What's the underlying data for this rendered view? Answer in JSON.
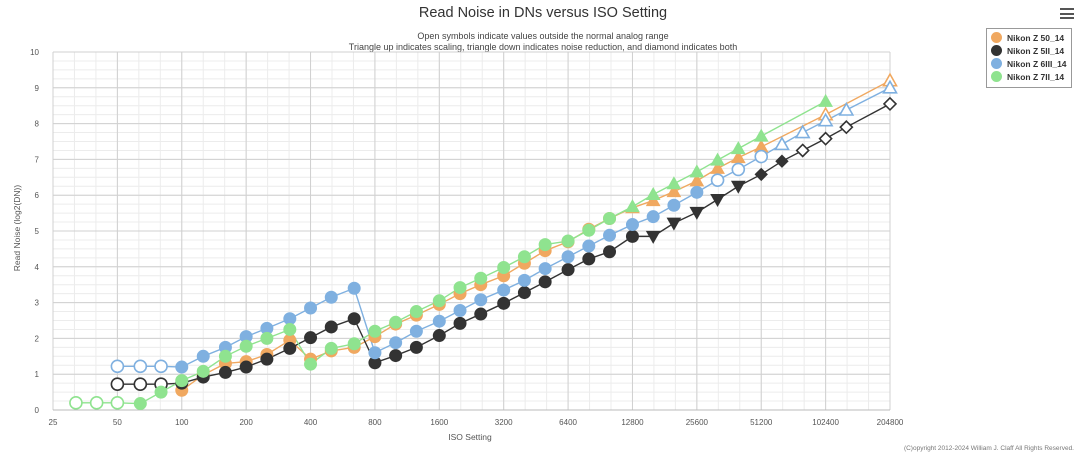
{
  "menu_icon": "hamburger-menu-icon",
  "chart_data": {
    "type": "line",
    "title": "Read Noise in DNs versus ISO Setting",
    "subtitle_lines": [
      "Open symbols indicate values outside the normal analog range",
      "Triangle up indicates scaling, triangle down indicates noise reduction, and diamond indicates both"
    ],
    "xlabel": "ISO Setting",
    "ylabel": "Read Noise (log2(DN))",
    "x_scale": "log2",
    "xlim": [
      25,
      204800
    ],
    "ylim": [
      0,
      10
    ],
    "x_ticks": [
      25,
      50,
      100,
      200,
      400,
      800,
      1600,
      3200,
      6400,
      12800,
      25600,
      51200,
      102400,
      204800
    ],
    "x_tick_labels": [
      "25",
      "50",
      "100",
      "200",
      "400",
      "800",
      "1600",
      "3200",
      "6400",
      "12800",
      "25600",
      "51200",
      "102400",
      "204800"
    ],
    "y_ticks": [
      0,
      1,
      2,
      3,
      4,
      5,
      6,
      7,
      8,
      9,
      10
    ],
    "y_tick_labels": [
      "0",
      "1",
      "2",
      "3",
      "4",
      "5",
      "6",
      "7",
      "8",
      "9",
      "10"
    ],
    "legend_position": "top-right",
    "copyright": "(C)opyright 2012-2024 William J. Claff All Rights Reserved.",
    "series": [
      {
        "name": "Nikon Z 50_14",
        "color": "#f0a860",
        "points": [
          {
            "x": 100,
            "y": 0.55
          },
          {
            "x": 126,
            "y": 0.98
          },
          {
            "x": 160,
            "y": 1.3
          },
          {
            "x": 200,
            "y": 1.35
          },
          {
            "x": 250,
            "y": 1.55
          },
          {
            "x": 320,
            "y": 1.95
          },
          {
            "x": 400,
            "y": 1.42
          },
          {
            "x": 500,
            "y": 1.65
          },
          {
            "x": 640,
            "y": 1.75
          },
          {
            "x": 800,
            "y": 2.05
          },
          {
            "x": 1000,
            "y": 2.4
          },
          {
            "x": 1250,
            "y": 2.65
          },
          {
            "x": 1600,
            "y": 2.95
          },
          {
            "x": 2000,
            "y": 3.25
          },
          {
            "x": 2500,
            "y": 3.5
          },
          {
            "x": 3200,
            "y": 3.75
          },
          {
            "x": 4000,
            "y": 4.1
          },
          {
            "x": 5000,
            "y": 4.45
          },
          {
            "x": 6400,
            "y": 4.7
          },
          {
            "x": 8000,
            "y": 5.05
          },
          {
            "x": 10000,
            "y": 5.35
          },
          {
            "x": 12800,
            "y": 5.65,
            "marker": "triangle-up"
          },
          {
            "x": 16000,
            "y": 5.85,
            "marker": "triangle-up"
          },
          {
            "x": 20000,
            "y": 6.1,
            "marker": "triangle-up"
          },
          {
            "x": 25600,
            "y": 6.4,
            "marker": "triangle-up"
          },
          {
            "x": 32000,
            "y": 6.75,
            "marker": "triangle-up"
          },
          {
            "x": 40000,
            "y": 7.05,
            "marker": "triangle-up"
          },
          {
            "x": 51200,
            "y": 7.35,
            "marker": "triangle-up"
          },
          {
            "x": 102400,
            "y": 8.25,
            "marker": "triangle-up",
            "open": true
          },
          {
            "x": 204800,
            "y": 9.2,
            "marker": "triangle-up",
            "open": true
          }
        ]
      },
      {
        "name": "Nikon Z 5II_14",
        "color": "#333333",
        "points": [
          {
            "x": 50,
            "y": 0.72,
            "open": true
          },
          {
            "x": 64,
            "y": 0.72,
            "open": true
          },
          {
            "x": 80,
            "y": 0.72,
            "open": true
          },
          {
            "x": 100,
            "y": 0.75
          },
          {
            "x": 126,
            "y": 0.92
          },
          {
            "x": 160,
            "y": 1.05
          },
          {
            "x": 200,
            "y": 1.2
          },
          {
            "x": 250,
            "y": 1.42
          },
          {
            "x": 320,
            "y": 1.72
          },
          {
            "x": 400,
            "y": 2.02
          },
          {
            "x": 500,
            "y": 2.32
          },
          {
            "x": 640,
            "y": 2.55
          },
          {
            "x": 800,
            "y": 1.32
          },
          {
            "x": 1000,
            "y": 1.52
          },
          {
            "x": 1250,
            "y": 1.75
          },
          {
            "x": 1600,
            "y": 2.08
          },
          {
            "x": 2000,
            "y": 2.42
          },
          {
            "x": 2500,
            "y": 2.68
          },
          {
            "x": 3200,
            "y": 2.98
          },
          {
            "x": 4000,
            "y": 3.28
          },
          {
            "x": 5000,
            "y": 3.58
          },
          {
            "x": 6400,
            "y": 3.92
          },
          {
            "x": 8000,
            "y": 4.22
          },
          {
            "x": 10000,
            "y": 4.42
          },
          {
            "x": 12800,
            "y": 4.85
          },
          {
            "x": 16000,
            "y": 4.85,
            "marker": "triangle-down"
          },
          {
            "x": 20000,
            "y": 5.22,
            "marker": "triangle-down"
          },
          {
            "x": 25600,
            "y": 5.52,
            "marker": "triangle-down"
          },
          {
            "x": 32000,
            "y": 5.88,
            "marker": "triangle-down"
          },
          {
            "x": 40000,
            "y": 6.25,
            "marker": "triangle-down"
          },
          {
            "x": 51200,
            "y": 6.58,
            "marker": "diamond"
          },
          {
            "x": 64000,
            "y": 6.95,
            "marker": "diamond"
          },
          {
            "x": 80000,
            "y": 7.25,
            "marker": "diamond",
            "open": true
          },
          {
            "x": 102400,
            "y": 7.58,
            "marker": "diamond",
            "open": true
          },
          {
            "x": 128000,
            "y": 7.9,
            "marker": "diamond",
            "open": true
          },
          {
            "x": 204800,
            "y": 8.55,
            "marker": "diamond",
            "open": true
          }
        ]
      },
      {
        "name": "Nikon Z 6III_14",
        "color": "#7fb0e0",
        "points": [
          {
            "x": 50,
            "y": 1.22,
            "open": true
          },
          {
            "x": 64,
            "y": 1.22,
            "open": true
          },
          {
            "x": 80,
            "y": 1.22,
            "open": true
          },
          {
            "x": 100,
            "y": 1.2
          },
          {
            "x": 126,
            "y": 1.5
          },
          {
            "x": 160,
            "y": 1.75
          },
          {
            "x": 200,
            "y": 2.05
          },
          {
            "x": 250,
            "y": 2.28
          },
          {
            "x": 320,
            "y": 2.55
          },
          {
            "x": 400,
            "y": 2.85
          },
          {
            "x": 500,
            "y": 3.15
          },
          {
            "x": 640,
            "y": 3.4
          },
          {
            "x": 800,
            "y": 1.6
          },
          {
            "x": 1000,
            "y": 1.88
          },
          {
            "x": 1250,
            "y": 2.2
          },
          {
            "x": 1600,
            "y": 2.48
          },
          {
            "x": 2000,
            "y": 2.78
          },
          {
            "x": 2500,
            "y": 3.08
          },
          {
            "x": 3200,
            "y": 3.35
          },
          {
            "x": 4000,
            "y": 3.62
          },
          {
            "x": 5000,
            "y": 3.95
          },
          {
            "x": 6400,
            "y": 4.28
          },
          {
            "x": 8000,
            "y": 4.58
          },
          {
            "x": 10000,
            "y": 4.88
          },
          {
            "x": 12800,
            "y": 5.18
          },
          {
            "x": 16000,
            "y": 5.4
          },
          {
            "x": 20000,
            "y": 5.72
          },
          {
            "x": 25600,
            "y": 6.08
          },
          {
            "x": 32000,
            "y": 6.42,
            "open": true
          },
          {
            "x": 40000,
            "y": 6.72,
            "open": true
          },
          {
            "x": 51200,
            "y": 7.08,
            "open": true
          },
          {
            "x": 64000,
            "y": 7.42,
            "marker": "triangle-up",
            "open": true
          },
          {
            "x": 80000,
            "y": 7.75,
            "marker": "triangle-up",
            "open": true
          },
          {
            "x": 102400,
            "y": 8.08,
            "marker": "triangle-up",
            "open": true
          },
          {
            "x": 128000,
            "y": 8.38,
            "marker": "triangle-up",
            "open": true
          },
          {
            "x": 204800,
            "y": 9.0,
            "marker": "triangle-up",
            "open": true
          }
        ]
      },
      {
        "name": "Nikon Z 7II_14",
        "color": "#8fe38f",
        "points": [
          {
            "x": 32,
            "y": 0.2,
            "open": true
          },
          {
            "x": 40,
            "y": 0.2,
            "open": true
          },
          {
            "x": 50,
            "y": 0.2,
            "open": true
          },
          {
            "x": 64,
            "y": 0.18
          },
          {
            "x": 80,
            "y": 0.5
          },
          {
            "x": 100,
            "y": 0.82
          },
          {
            "x": 126,
            "y": 1.08
          },
          {
            "x": 160,
            "y": 1.5
          },
          {
            "x": 200,
            "y": 1.78
          },
          {
            "x": 250,
            "y": 2.0
          },
          {
            "x": 320,
            "y": 2.25
          },
          {
            "x": 400,
            "y": 1.28
          },
          {
            "x": 500,
            "y": 1.72
          },
          {
            "x": 640,
            "y": 1.85
          },
          {
            "x": 800,
            "y": 2.2
          },
          {
            "x": 1000,
            "y": 2.45
          },
          {
            "x": 1250,
            "y": 2.75
          },
          {
            "x": 1600,
            "y": 3.05
          },
          {
            "x": 2000,
            "y": 3.42
          },
          {
            "x": 2500,
            "y": 3.68
          },
          {
            "x": 3200,
            "y": 3.98
          },
          {
            "x": 4000,
            "y": 4.28
          },
          {
            "x": 5000,
            "y": 4.62
          },
          {
            "x": 6400,
            "y": 4.72
          },
          {
            "x": 8000,
            "y": 5.02
          },
          {
            "x": 10000,
            "y": 5.35
          },
          {
            "x": 12800,
            "y": 5.68,
            "marker": "triangle-up"
          },
          {
            "x": 16000,
            "y": 6.02,
            "marker": "triangle-up"
          },
          {
            "x": 20000,
            "y": 6.32,
            "marker": "triangle-up"
          },
          {
            "x": 25600,
            "y": 6.65,
            "marker": "triangle-up"
          },
          {
            "x": 32000,
            "y": 6.98,
            "marker": "triangle-up"
          },
          {
            "x": 40000,
            "y": 7.3,
            "marker": "triangle-up"
          },
          {
            "x": 51200,
            "y": 7.65,
            "marker": "triangle-up"
          },
          {
            "x": 102400,
            "y": 8.62,
            "marker": "triangle-up"
          }
        ]
      }
    ]
  }
}
